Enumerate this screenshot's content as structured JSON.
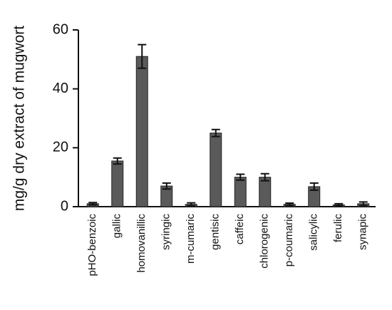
{
  "chart_data": {
    "type": "bar",
    "y_label": "mg/g dry extract of mugwort",
    "categories": [
      "pHO-benzoic",
      "gallic",
      "homovanillic",
      "syringic",
      "m-cumaric",
      "gentisic",
      "caffeic",
      "chlorogenic",
      "p-coumaric",
      "salicylic",
      "ferulic",
      "synapic"
    ],
    "values": [
      1.0,
      15.5,
      51,
      7,
      0.8,
      25,
      10,
      10,
      0.8,
      6.8,
      0.6,
      1.0
    ],
    "errors": [
      0.4,
      1,
      4,
      1,
      0.5,
      1.2,
      1,
      1.2,
      0.4,
      1.2,
      0.4,
      0.6
    ],
    "color": "#5a5a5a",
    "ylim": [
      0,
      60
    ],
    "yticks": [
      0,
      20,
      40,
      60
    ]
  }
}
